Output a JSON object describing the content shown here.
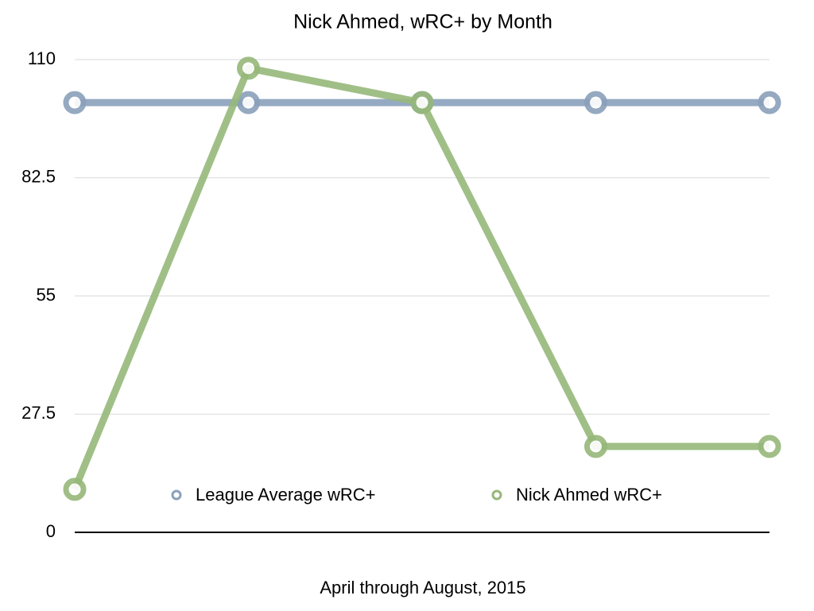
{
  "chart_data": {
    "type": "line",
    "title": "Nick Ahmed, wRC+ by Month",
    "x_label": "April through August, 2015",
    "categories": [
      null,
      null,
      null,
      null,
      null
    ],
    "series": [
      {
        "name": "League Average wRC+",
        "color": "#8aa0bb",
        "values": [
          100,
          100,
          100,
          100,
          100
        ]
      },
      {
        "name": "Nick Ahmed wRC+",
        "color": "#96b87a",
        "values": [
          10,
          108,
          100,
          20,
          20
        ]
      }
    ],
    "ylim": [
      0,
      110
    ],
    "yticks": [
      0,
      27.5,
      55,
      82.5,
      110
    ],
    "grid": true
  }
}
